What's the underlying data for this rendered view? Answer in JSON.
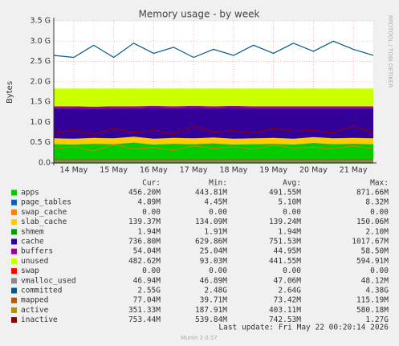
{
  "chart_data": {
    "type": "area",
    "title": "Memory usage - by week",
    "y_label": "Bytes",
    "side_text": "RRDTOOL / TOBI OETIKER",
    "categories": [
      null,
      "14 May",
      null,
      "15 May",
      null,
      "16 May",
      null,
      "17 May",
      null,
      "18 May",
      null,
      "19 May",
      null,
      "20 May",
      null,
      "21 May",
      null
    ],
    "ylim": [
      0,
      3.5
    ],
    "yticks": [
      {
        "value": 0,
        "label": "0.0"
      },
      {
        "value": 0.5,
        "label": "0.5 G"
      },
      {
        "value": 1,
        "label": "1.0 G"
      },
      {
        "value": 1.5,
        "label": "1.5 G"
      },
      {
        "value": 2,
        "label": "2.0 G"
      },
      {
        "value": 2.5,
        "label": "2.5 G"
      },
      {
        "value": 3,
        "label": "3.0 G"
      },
      {
        "value": 3.5,
        "label": "3.5 G"
      }
    ],
    "grid": true,
    "stats_headers": [
      "Cur:",
      "Min:",
      "Avg:",
      "Max:"
    ],
    "series": [
      {
        "name": "apps",
        "color": "#00cc00",
        "kind": "area",
        "values": [
          0.46,
          0.45,
          0.47,
          0.46,
          0.5,
          0.45,
          0.47,
          0.46,
          0.48,
          0.45,
          0.46,
          0.47,
          0.45,
          0.49,
          0.46,
          0.47,
          0.46
        ],
        "stats": [
          "456.20M",
          "443.81M",
          "491.55M",
          "871.66M"
        ]
      },
      {
        "name": "page_tables",
        "color": "#0066b3",
        "kind": "area",
        "values": [
          0.005,
          0.005,
          0.005,
          0.005,
          0.005,
          0.005,
          0.005,
          0.005,
          0.005,
          0.005,
          0.005,
          0.005,
          0.005,
          0.005,
          0.005,
          0.005,
          0.005
        ],
        "stats": [
          "4.89M",
          "4.45M",
          "5.10M",
          "8.32M"
        ]
      },
      {
        "name": "swap_cache",
        "color": "#ff8000",
        "kind": "area",
        "values": [
          0,
          0,
          0,
          0,
          0,
          0,
          0,
          0,
          0,
          0,
          0,
          0,
          0,
          0,
          0,
          0,
          0
        ],
        "stats": [
          "0.00",
          "0.00",
          "0.00",
          "0.00"
        ]
      },
      {
        "name": "slab_cache",
        "color": "#ffcc00",
        "kind": "area",
        "values": [
          0.14,
          0.14,
          0.14,
          0.14,
          0.14,
          0.14,
          0.14,
          0.14,
          0.14,
          0.14,
          0.14,
          0.14,
          0.14,
          0.14,
          0.14,
          0.14,
          0.14
        ],
        "stats": [
          "139.37M",
          "134.09M",
          "139.24M",
          "150.06M"
        ]
      },
      {
        "name": "shmem",
        "color": "#00a000",
        "kind": "area",
        "values": [
          0.002,
          0.002,
          0.002,
          0.002,
          0.002,
          0.002,
          0.002,
          0.002,
          0.002,
          0.002,
          0.002,
          0.002,
          0.002,
          0.002,
          0.002,
          0.002,
          0.002
        ],
        "stats": [
          "1.94M",
          "1.91M",
          "1.94M",
          "2.10M"
        ]
      },
      {
        "name": "cache",
        "color": "#330099",
        "kind": "area",
        "values": [
          0.74,
          0.75,
          0.72,
          0.74,
          0.7,
          0.76,
          0.73,
          0.75,
          0.72,
          0.76,
          0.74,
          0.73,
          0.75,
          0.71,
          0.74,
          0.73,
          0.74
        ],
        "stats": [
          "736.80M",
          "629.86M",
          "751.53M",
          "1017.67M"
        ]
      },
      {
        "name": "buffers",
        "color": "#990099",
        "kind": "area",
        "values": [
          0.05,
          0.05,
          0.05,
          0.05,
          0.05,
          0.05,
          0.05,
          0.05,
          0.05,
          0.05,
          0.05,
          0.05,
          0.05,
          0.05,
          0.05,
          0.05,
          0.05
        ],
        "stats": [
          "54.04M",
          "25.04M",
          "44.95M",
          "58.50M"
        ]
      },
      {
        "name": "unused",
        "color": "#ccff00",
        "kind": "area",
        "values": [
          0.436,
          0.436,
          0.446,
          0.436,
          0.436,
          0.426,
          0.436,
          0.426,
          0.436,
          0.426,
          0.436,
          0.436,
          0.436,
          0.436,
          0.436,
          0.436,
          0.436
        ],
        "stats": [
          "482.62M",
          "93.03M",
          "441.55M",
          "594.91M"
        ]
      },
      {
        "name": "swap",
        "color": "#ff0000",
        "kind": "line",
        "values": [
          0,
          0,
          0,
          0,
          0,
          0,
          0,
          0,
          0,
          0,
          0,
          0,
          0,
          0,
          0,
          0,
          0
        ],
        "stats": [
          "0.00",
          "0.00",
          "0.00",
          "0.00"
        ]
      },
      {
        "name": "vmalloc_used",
        "color": "#8a8a8a",
        "kind": "line",
        "values": [
          0.047,
          0.047,
          0.047,
          0.047,
          0.047,
          0.047,
          0.047,
          0.047,
          0.047,
          0.047,
          0.047,
          0.047,
          0.047,
          0.047,
          0.047,
          0.047,
          0.047
        ],
        "stats": [
          "46.94M",
          "46.89M",
          "47.06M",
          "48.12M"
        ]
      },
      {
        "name": "committed",
        "color": "#005a8c",
        "kind": "line",
        "values": [
          2.65,
          2.6,
          2.9,
          2.6,
          2.95,
          2.7,
          2.85,
          2.6,
          2.8,
          2.65,
          2.9,
          2.7,
          2.95,
          2.75,
          3.0,
          2.8,
          2.65
        ],
        "stats": [
          "2.55G",
          "2.48G",
          "2.64G",
          "4.38G"
        ]
      },
      {
        "name": "mapped",
        "color": "#b35a00",
        "kind": "line",
        "values": [
          0.08,
          0.08,
          0.08,
          0.08,
          0.08,
          0.08,
          0.08,
          0.08,
          0.08,
          0.08,
          0.08,
          0.08,
          0.08,
          0.08,
          0.08,
          0.08,
          0.08
        ],
        "stats": [
          "77.04M",
          "39.71M",
          "73.42M",
          "115.19M"
        ]
      },
      {
        "name": "active",
        "color": "#b38f00",
        "kind": "line",
        "values": [
          0.35,
          0.4,
          0.3,
          0.45,
          0.35,
          0.38,
          0.32,
          0.42,
          0.36,
          0.4,
          0.34,
          0.44,
          0.37,
          0.39,
          0.35,
          0.42,
          0.35
        ],
        "stats": [
          "351.33M",
          "187.91M",
          "403.11M",
          "580.18M"
        ]
      },
      {
        "name": "inactive",
        "color": "#8f0000",
        "kind": "line",
        "values": [
          0.75,
          0.8,
          0.7,
          0.85,
          0.75,
          0.8,
          0.72,
          0.9,
          0.76,
          0.8,
          0.74,
          0.85,
          0.78,
          0.8,
          0.75,
          0.9,
          0.75
        ],
        "stats": [
          "753.44M",
          "539.84M",
          "742.53M",
          "1.27G"
        ]
      }
    ],
    "footer": "Last update: Fri May 22 00:20:14 2026",
    "version": "Munin 2.0.57"
  }
}
